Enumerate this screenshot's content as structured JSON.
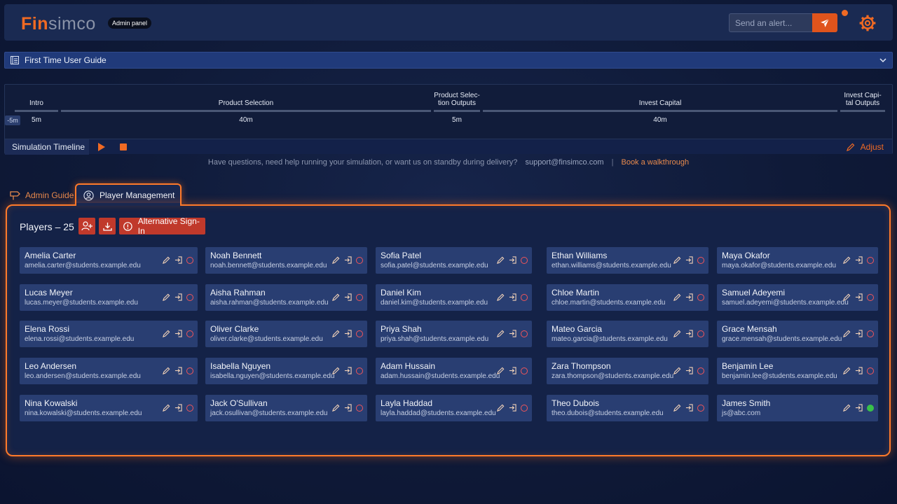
{
  "header": {
    "logo_fin": "Fin",
    "logo_simco": "simco",
    "badge": "Admin panel",
    "alert_placeholder": "Send an alert..."
  },
  "guide": {
    "label": "First Time User Guide"
  },
  "timeline": {
    "offset": "-5m",
    "phases": [
      {
        "name": "Intro",
        "duration": "5m"
      },
      {
        "name": "Product Selection",
        "duration": "40m"
      },
      {
        "name": "Product Selec-\ntion Outputs",
        "duration": "5m"
      },
      {
        "name": "Invest Capital",
        "duration": "40m"
      },
      {
        "name": "Invest Capi-\ntal Outputs",
        "duration": ""
      }
    ],
    "label": "Simulation Timeline",
    "adjust": "Adjust"
  },
  "help": {
    "text": "Have questions, need help running your simulation, or want us on standby during delivery?",
    "email": "support@finsimco.com",
    "separator": "|",
    "book": "Book a walkthrough"
  },
  "tabs": {
    "admin": "Admin Guide",
    "players": "Player Management"
  },
  "players": {
    "title": "Players – 25",
    "alt_signin": "Alternative Sign-In",
    "list": [
      {
        "name": "Amelia Carter",
        "email": "amelia.carter@students.example.edu",
        "online": false
      },
      {
        "name": "Noah Bennett",
        "email": "noah.bennett@students.example.edu",
        "online": false
      },
      {
        "name": "Sofia Patel",
        "email": "sofia.patel@students.example.edu",
        "online": false
      },
      {
        "name": "Ethan Williams",
        "email": "ethan.williams@students.example.edu",
        "online": false
      },
      {
        "name": "Maya Okafor",
        "email": "maya.okafor@students.example.edu",
        "online": false
      },
      {
        "name": "Lucas Meyer",
        "email": "lucas.meyer@students.example.edu",
        "online": false
      },
      {
        "name": "Aisha Rahman",
        "email": "aisha.rahman@students.example.edu",
        "online": false
      },
      {
        "name": "Daniel Kim",
        "email": "daniel.kim@students.example.edu",
        "online": false
      },
      {
        "name": "Chloe Martin",
        "email": "chloe.martin@students.example.edu",
        "online": false
      },
      {
        "name": "Samuel Adeyemi",
        "email": "samuel.adeyemi@students.example.edu",
        "online": false
      },
      {
        "name": "Elena Rossi",
        "email": "elena.rossi@students.example.edu",
        "online": false
      },
      {
        "name": "Oliver Clarke",
        "email": "oliver.clarke@students.example.edu",
        "online": false
      },
      {
        "name": "Priya Shah",
        "email": "priya.shah@students.example.edu",
        "online": false
      },
      {
        "name": "Mateo Garcia",
        "email": "mateo.garcia@students.example.edu",
        "online": false
      },
      {
        "name": "Grace Mensah",
        "email": "grace.mensah@students.example.edu",
        "online": false
      },
      {
        "name": "Leo Andersen",
        "email": "leo.andersen@students.example.edu",
        "online": false
      },
      {
        "name": "Isabella Nguyen",
        "email": "isabella.nguyen@students.example.edu",
        "online": false
      },
      {
        "name": "Adam Hussain",
        "email": "adam.hussain@students.example.edu",
        "online": false
      },
      {
        "name": "Zara Thompson",
        "email": "zara.thompson@students.example.edu",
        "online": false
      },
      {
        "name": "Benjamin Lee",
        "email": "benjamin.lee@students.example.edu",
        "online": false
      },
      {
        "name": "Nina Kowalski",
        "email": "nina.kowalski@students.example.edu",
        "online": false
      },
      {
        "name": "Jack O'Sullivan",
        "email": "jack.osullivan@students.example.edu",
        "online": false
      },
      {
        "name": "Layla Haddad",
        "email": "layla.haddad@students.example.edu",
        "online": false
      },
      {
        "name": "Theo Dubois",
        "email": "theo.dubois@students.example.edu",
        "online": false
      },
      {
        "name": "James Smith",
        "email": "js@abc.com",
        "online": true
      }
    ]
  },
  "colors": {
    "accent": "#f06a23",
    "danger": "#c0392b",
    "online": "#39c149",
    "offline": "#f0555a"
  }
}
